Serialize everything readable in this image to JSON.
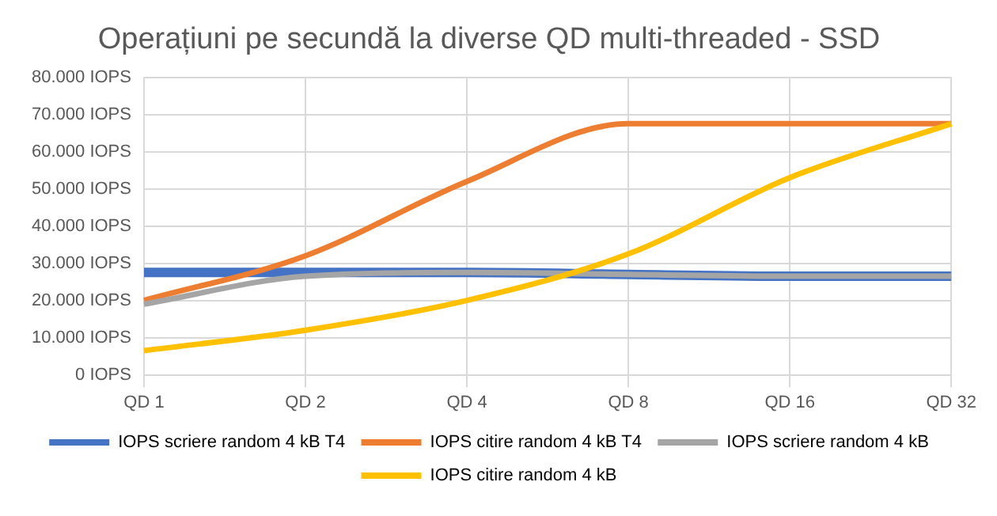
{
  "chart_data": {
    "type": "line",
    "title": "Operațiuni pe secundă la diverse QD multi-threaded - SSD",
    "categories": [
      "QD 1",
      "QD 2",
      "QD 4",
      "QD 8",
      "QD 16",
      "QD 32"
    ],
    "series": [
      {
        "name": "IOPS scriere random 4 kB T4",
        "color": "#4472c4",
        "values": [
          27500,
          27500,
          27500,
          27000,
          26500,
          26500
        ]
      },
      {
        "name": "IOPS citire random 4 kB T4",
        "color": "#ed7d31",
        "values": [
          20000,
          32000,
          52000,
          67500,
          67500,
          67500
        ]
      },
      {
        "name": "IOPS scriere random 4 kB",
        "color": "#a5a5a5",
        "values": [
          19000,
          26500,
          27500,
          27000,
          26500,
          26500
        ]
      },
      {
        "name": "IOPS citire random 4 kB",
        "color": "#ffc000",
        "values": [
          6500,
          12000,
          20000,
          32500,
          53000,
          67500
        ]
      }
    ],
    "ylim": [
      0,
      80000
    ],
    "yticks": [
      {
        "value": 0,
        "label": "0 IOPS"
      },
      {
        "value": 10000,
        "label": "10.000 IOPS"
      },
      {
        "value": 20000,
        "label": "20.000 IOPS"
      },
      {
        "value": 30000,
        "label": "30.000 IOPS"
      },
      {
        "value": 40000,
        "label": "40.000 IOPS"
      },
      {
        "value": 50000,
        "label": "50.000 IOPS"
      },
      {
        "value": 60000,
        "label": "60.000 IOPS"
      },
      {
        "value": 70000,
        "label": "70.000 IOPS"
      },
      {
        "value": 80000,
        "label": "80.000 IOPS"
      }
    ],
    "grid": true,
    "legend": "bottom",
    "marker": "none",
    "line_style": "solid"
  }
}
